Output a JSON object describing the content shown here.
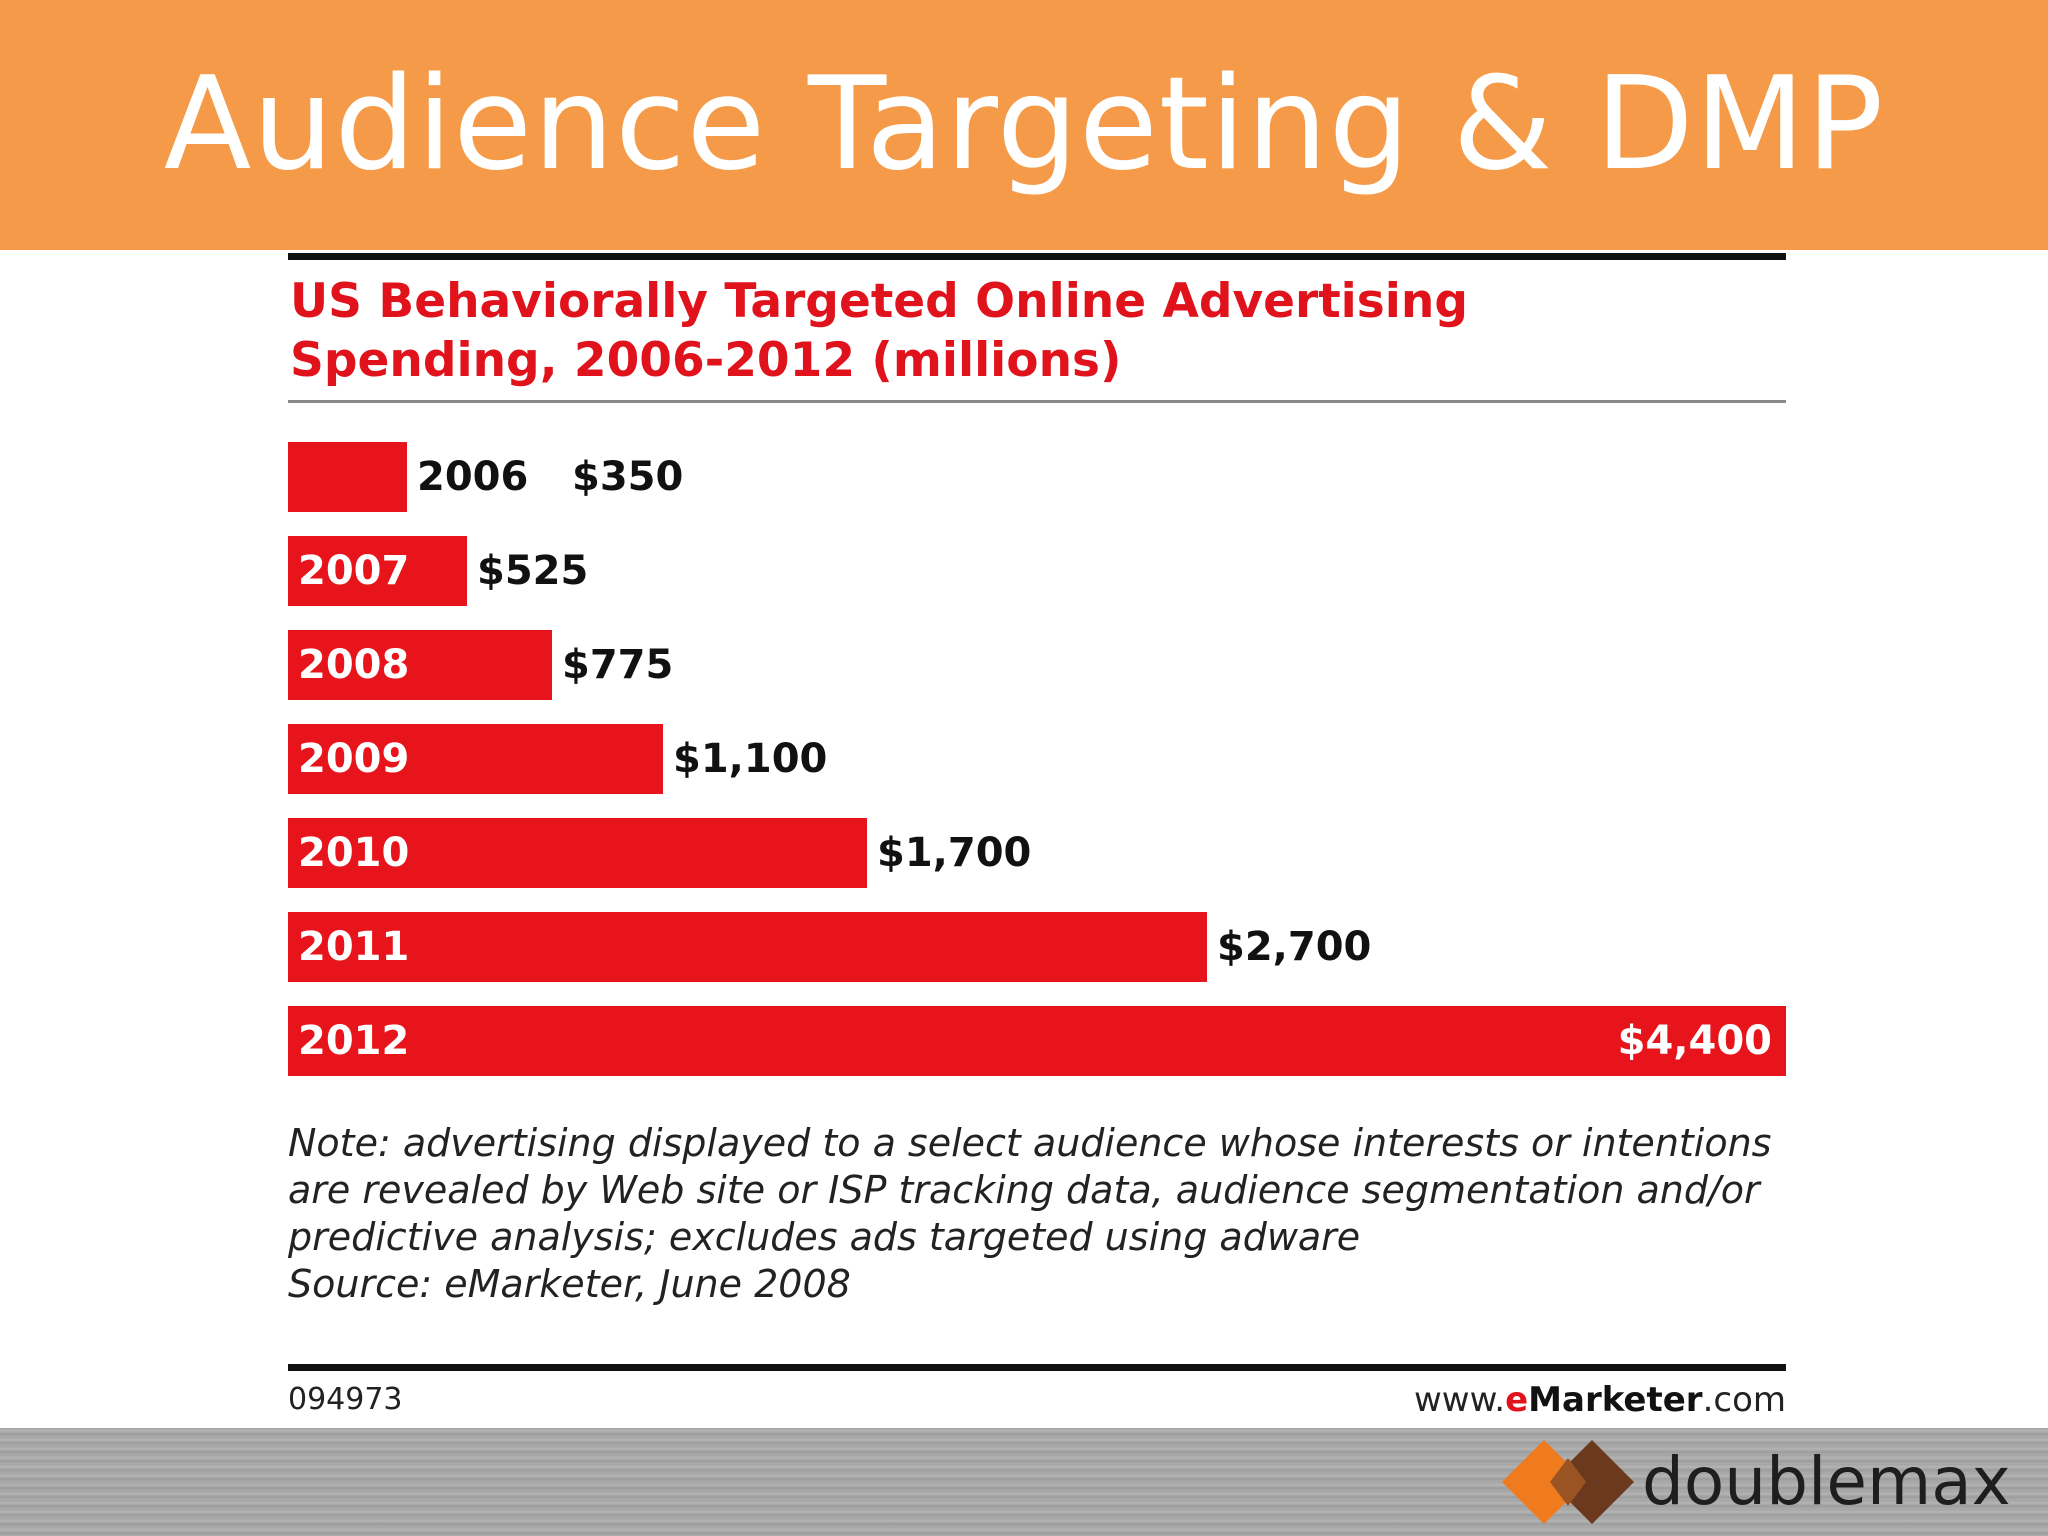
{
  "slide": {
    "title": "Audience Targeting & DMP"
  },
  "chart_data": {
    "type": "bar",
    "orientation": "horizontal",
    "title": "US Behaviorally Targeted Online Advertising Spending, 2006-2012 (millions)",
    "categories": [
      "2006",
      "2007",
      "2008",
      "2009",
      "2010",
      "2011",
      "2012"
    ],
    "values": [
      350,
      525,
      775,
      1100,
      1700,
      2700,
      4400
    ],
    "value_labels": [
      "$350",
      "$525",
      "$775",
      "$1,100",
      "$1,700",
      "$2,700",
      "$4,400"
    ],
    "xlim": [
      0,
      4400
    ],
    "grid": false,
    "legend": "none",
    "bar_color": "#e8141c",
    "note": "Note: advertising displayed to a select audience whose interests or intentions are revealed by Web site or ISP tracking data, audience segmentation and/or predictive analysis; excludes ads targeted using adware",
    "source": "Source: eMarketer, June 2008",
    "chart_id": "094973"
  },
  "footer": {
    "url_prefix": "www.",
    "url_brand": "e",
    "url_brand_rest": "Marketer",
    "url_suffix": ".com"
  },
  "logo": {
    "text": "doublemax",
    "icon": "double-diamond-icon",
    "colors": [
      "#f07a1e",
      "#6b3a1e"
    ]
  },
  "colors": {
    "header": "#f59a48",
    "accent_red": "#e0121b"
  }
}
